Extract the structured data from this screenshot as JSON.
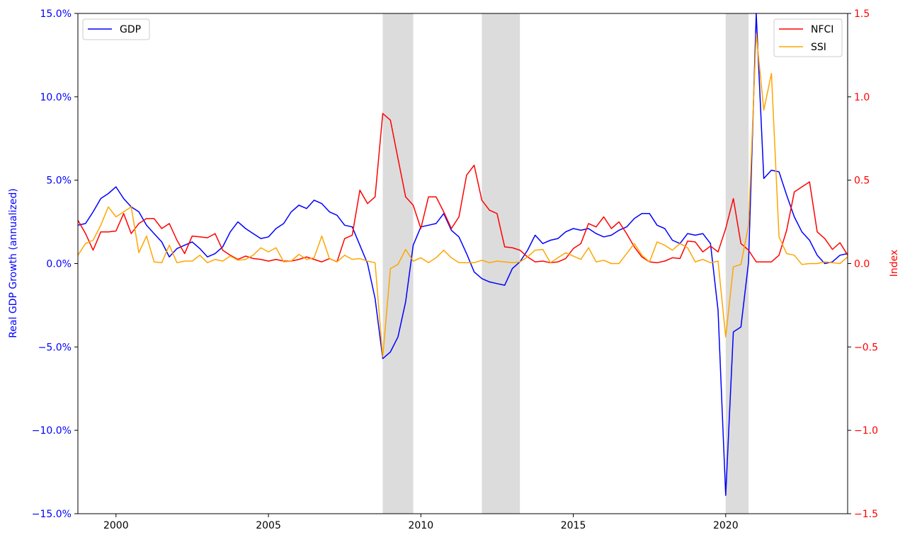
{
  "chart_data": {
    "type": "line",
    "x_start": 1998.75,
    "x_step": 0.25,
    "xlim": [
      1998.75,
      2024.0
    ],
    "x_ticks": [
      2000,
      2005,
      2010,
      2015,
      2020
    ],
    "x_tick_labels": [
      "2000",
      "2005",
      "2010",
      "2015",
      "2020"
    ],
    "ylabel_left": "Real GDP Growth (annualized)",
    "ylabel_right": "Index",
    "ylim_left": [
      -15,
      15
    ],
    "ylim_right": [
      -1.5,
      1.5
    ],
    "left_ticks": [
      -15,
      -10,
      -5,
      0,
      5,
      10,
      15
    ],
    "left_tick_labels": [
      "−15.0%",
      "−10.0%",
      "−5.0%",
      "0.0%",
      "5.0%",
      "10.0%",
      "15.0%"
    ],
    "right_ticks": [
      -1.5,
      -1.0,
      -0.5,
      0.0,
      0.5,
      1.0,
      1.5
    ],
    "right_tick_labels": [
      "−1.5",
      "−1.0",
      "−0.5",
      "0.0",
      "0.5",
      "1.0",
      "1.5"
    ],
    "left_color": "#0000ff",
    "right_color": "#ff0000",
    "recessions": [
      [
        2008.75,
        2009.75
      ],
      [
        2012.0,
        2013.25
      ],
      [
        2020.0,
        2020.75
      ]
    ],
    "legend_left": {
      "placement": "upper-left",
      "entries": [
        "GDP"
      ]
    },
    "legend_right": {
      "placement": "upper-right",
      "entries": [
        "NFCI",
        "SSI"
      ]
    },
    "series": [
      {
        "name": "GDP",
        "axis": "left",
        "color": "#0000ff",
        "values": [
          2.3,
          2.4,
          3.1,
          3.9,
          4.2,
          4.6,
          3.9,
          3.4,
          3.1,
          2.3,
          1.8,
          1.3,
          0.4,
          0.9,
          1.1,
          1.3,
          0.9,
          0.4,
          0.6,
          1.0,
          1.9,
          2.5,
          2.1,
          1.8,
          1.5,
          1.6,
          2.1,
          2.4,
          3.1,
          3.5,
          3.3,
          3.8,
          3.6,
          3.1,
          2.9,
          2.3,
          2.2,
          1.1,
          0.0,
          -2.1,
          -5.7,
          -5.3,
          -4.4,
          -2.3,
          1.1,
          2.2,
          2.3,
          2.4,
          3.0,
          2.0,
          1.6,
          0.6,
          -0.5,
          -0.9,
          -1.1,
          -1.2,
          -1.3,
          -0.3,
          0.1,
          0.8,
          1.7,
          1.2,
          1.4,
          1.5,
          1.9,
          2.1,
          2.0,
          2.1,
          1.8,
          1.6,
          1.7,
          2.0,
          2.2,
          2.7,
          3.0,
          3.0,
          2.3,
          2.1,
          1.4,
          1.2,
          1.8,
          1.7,
          1.8,
          1.2,
          -2.8,
          -13.9,
          -4.1,
          -3.8,
          0.1,
          15.0,
          5.1,
          5.6,
          5.5,
          4.1,
          2.8,
          1.9,
          1.4,
          0.5,
          0.0,
          0.1,
          0.5,
          0.6
        ]
      },
      {
        "name": "NFCI",
        "axis": "right",
        "color": "#ff0000",
        "values": [
          0.26,
          0.18,
          0.08,
          0.19,
          0.19,
          0.195,
          0.3,
          0.18,
          0.24,
          0.27,
          0.27,
          0.21,
          0.24,
          0.14,
          0.06,
          0.165,
          0.16,
          0.155,
          0.18,
          0.08,
          0.05,
          0.025,
          0.045,
          0.03,
          0.025,
          0.015,
          0.025,
          0.015,
          0.015,
          0.025,
          0.04,
          0.025,
          0.01,
          0.03,
          0.01,
          0.15,
          0.17,
          0.44,
          0.36,
          0.4,
          0.9,
          0.86,
          0.63,
          0.4,
          0.35,
          0.21,
          0.4,
          0.4,
          0.31,
          0.21,
          0.28,
          0.53,
          0.59,
          0.38,
          0.32,
          0.3,
          0.1,
          0.095,
          0.08,
          0.04,
          0.01,
          0.015,
          0.005,
          0.01,
          0.03,
          0.09,
          0.12,
          0.24,
          0.22,
          0.28,
          0.21,
          0.25,
          0.18,
          0.1,
          0.04,
          0.01,
          0.005,
          0.015,
          0.035,
          0.03,
          0.135,
          0.13,
          0.07,
          0.105,
          0.07,
          0.21,
          0.39,
          0.12,
          0.08,
          0.01,
          0.01,
          0.01,
          0.05,
          0.2,
          0.43,
          0.46,
          0.49,
          0.19,
          0.15,
          0.085,
          0.125,
          0.05
        ]
      },
      {
        "name": "SSI",
        "axis": "right",
        "color": "#ffa500",
        "values": [
          0.05,
          0.12,
          0.14,
          0.23,
          0.34,
          0.28,
          0.31,
          0.34,
          0.065,
          0.165,
          0.01,
          0.005,
          0.11,
          0.005,
          0.015,
          0.015,
          0.05,
          0.005,
          0.025,
          0.015,
          0.045,
          0.02,
          0.025,
          0.05,
          0.095,
          0.07,
          0.095,
          0.01,
          0.015,
          0.055,
          0.025,
          0.035,
          0.165,
          0.03,
          0.01,
          0.05,
          0.025,
          0.03,
          0.015,
          0.005,
          -0.56,
          -0.03,
          -0.005,
          0.085,
          0.015,
          0.035,
          0.005,
          0.035,
          0.08,
          0.035,
          0.005,
          0.005,
          0.005,
          0.02,
          0.005,
          0.015,
          0.01,
          0.005,
          0.01,
          0.04,
          0.08,
          0.085,
          0.005,
          0.035,
          0.065,
          0.045,
          0.025,
          0.095,
          0.01,
          0.02,
          0.0,
          0.0,
          0.06,
          0.12,
          0.05,
          0.01,
          0.13,
          0.11,
          0.08,
          0.12,
          0.095,
          0.01,
          0.025,
          0.005,
          0.015,
          -0.44,
          -0.02,
          -0.005,
          0.23,
          1.38,
          0.92,
          1.14,
          0.16,
          0.06,
          0.05,
          -0.005,
          0.0,
          0.0,
          0.01,
          0.005,
          0.0,
          0.04
        ]
      }
    ]
  }
}
